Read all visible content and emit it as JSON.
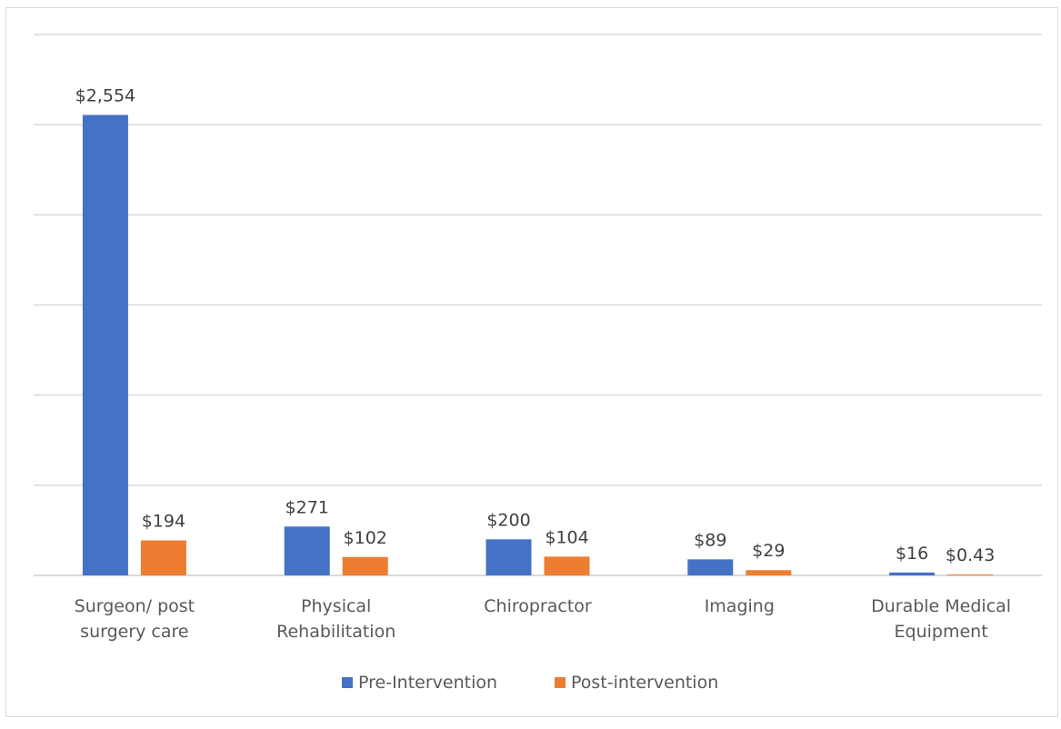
{
  "chart_data": {
    "type": "bar",
    "categories": [
      [
        "Surgeon/ post",
        "surgery care"
      ],
      [
        "Physical",
        "Rehabilitation"
      ],
      [
        "Chiropractor"
      ],
      [
        "Imaging"
      ],
      [
        "Durable Medical",
        "Equipment"
      ]
    ],
    "series": [
      {
        "name": "Pre-Intervention",
        "color": "#4472c4",
        "values": [
          2554,
          271,
          200,
          89,
          16
        ],
        "labels": [
          "$2,554",
          "$271",
          "$200",
          "$89",
          "$16"
        ]
      },
      {
        "name": "Post-intervention",
        "color": "#ed7d31",
        "values": [
          194,
          102,
          104,
          29,
          0.43
        ],
        "labels": [
          "$194",
          "$102",
          "$104",
          "$29",
          "$0.43"
        ]
      }
    ],
    "ylim": [
      0,
      3000
    ],
    "grid": true,
    "legend": "bottom"
  }
}
